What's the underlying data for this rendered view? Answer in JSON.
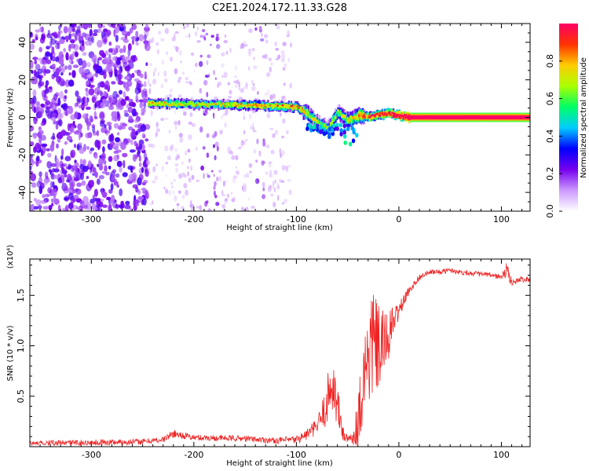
{
  "title": "C2E1.2024.172.11.33.G28",
  "chart_data": [
    {
      "type": "heatmap",
      "xlabel": "Height of straight line (km)",
      "ylabel": "Frequency (Hz)",
      "xlim": [
        -360,
        128
      ],
      "ylim": [
        -50,
        50
      ],
      "xticks": [
        -300,
        -200,
        -100,
        0,
        100
      ],
      "yticks": [
        -40,
        -20,
        0,
        20,
        40
      ],
      "colorbar": {
        "label": "Normalized spectral amplitude",
        "range": [
          0.0,
          1.0
        ],
        "ticks": [
          "0.0",
          "0.2",
          "0.4",
          "0.6",
          "0.8"
        ],
        "colors": [
          "#ffffff",
          "#cc99ff",
          "#7700ee",
          "#0000ff",
          "#00ccff",
          "#00ff66",
          "#aaff00",
          "#ffcc00",
          "#ff3300",
          "#ff0066"
        ]
      },
      "ridge": {
        "x": [
          -245,
          -200,
          -150,
          -120,
          -100,
          -90,
          -80,
          -70,
          -60,
          -50,
          -40,
          -30,
          -20,
          -10,
          0,
          10,
          50,
          100,
          128
        ],
        "frequency": [
          7.5,
          7.0,
          6.5,
          6.0,
          5.5,
          2.0,
          -3.0,
          -6.0,
          3.0,
          -2.0,
          1.0,
          0.0,
          1.5,
          2.0,
          1.0,
          0.0,
          0.0,
          0.0,
          0.0
        ],
        "amplitude": [
          0.55,
          0.5,
          0.55,
          0.6,
          0.65,
          0.5,
          0.45,
          0.4,
          0.45,
          0.5,
          0.6,
          0.7,
          0.75,
          0.8,
          0.85,
          0.95,
          0.95,
          0.95,
          0.95
        ]
      },
      "noise_region": {
        "x_start": -360,
        "x_end": -245
      }
    },
    {
      "type": "line",
      "xlabel": "Height of straight line (km)",
      "ylabel": "SNR (10 * v/v)",
      "multiplier": "(x10⁴)",
      "xlim": [
        -360,
        128
      ],
      "ylim": [
        0,
        18600
      ],
      "xticks": [
        -300,
        -200,
        -100,
        0,
        100
      ],
      "yticks": [
        5000,
        10000,
        15000
      ],
      "ytick_labels": [
        "0.5",
        "1.0",
        "1.5"
      ],
      "series": [
        {
          "color": "#ee2222",
          "x": [
            -360,
            -300,
            -250,
            -230,
            -220,
            -200,
            -150,
            -120,
            -100,
            -90,
            -80,
            -75,
            -70,
            -65,
            -60,
            -55,
            -50,
            -45,
            -40,
            -35,
            -30,
            -25,
            -20,
            -15,
            -10,
            -5,
            0,
            5,
            10,
            20,
            30,
            40,
            50,
            60,
            70,
            80,
            90,
            100,
            105,
            110,
            120,
            128
          ],
          "y": [
            300,
            400,
            500,
            700,
            1300,
            900,
            800,
            600,
            700,
            1200,
            2000,
            3000,
            4500,
            6500,
            4000,
            1500,
            600,
            1000,
            2500,
            6500,
            9000,
            10500,
            9500,
            10000,
            11000,
            12500,
            13500,
            14500,
            15500,
            16800,
            17300,
            17300,
            17500,
            17300,
            17200,
            17100,
            17000,
            16800,
            17500,
            16300,
            16600,
            16500
          ],
          "noise": [
            300,
            300,
            300,
            300,
            400,
            300,
            300,
            300,
            400,
            600,
            800,
            1500,
            2500,
            3000,
            2500,
            1000,
            400,
            1000,
            2500,
            4500,
            5500,
            5500,
            4500,
            3500,
            2500,
            1500,
            900,
            600,
            400,
            300,
            250,
            250,
            250,
            250,
            250,
            250,
            250,
            300,
            800,
            400,
            300,
            250
          ]
        }
      ]
    }
  ]
}
